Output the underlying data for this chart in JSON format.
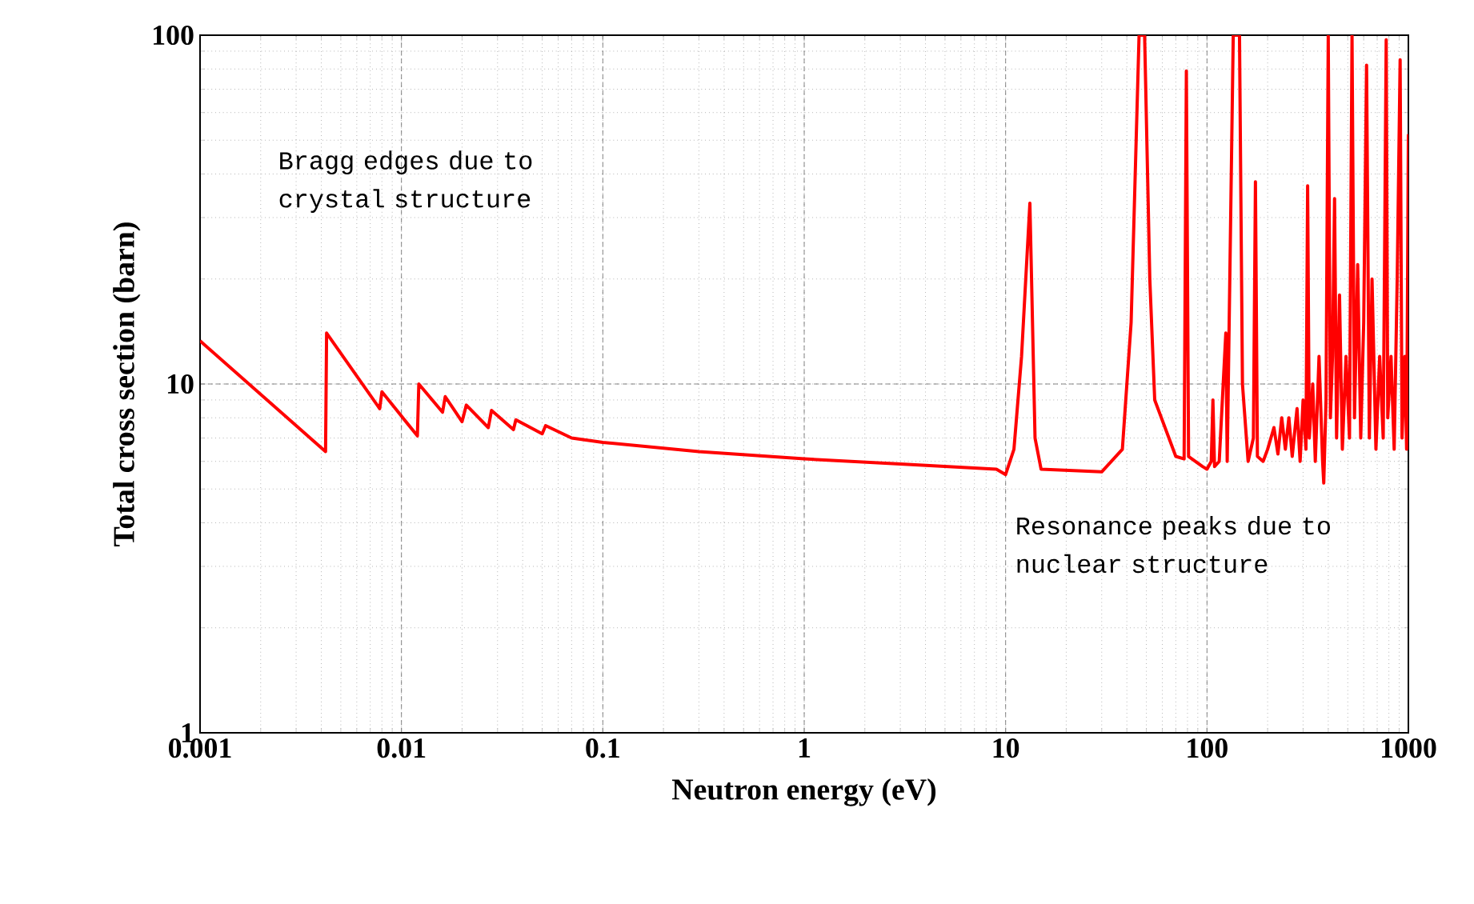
{
  "chart_data": {
    "type": "line",
    "xlabel": "Neutron energy (eV)",
    "ylabel": "Total cross section (barn)",
    "log": "xy",
    "grid": true,
    "marker": "none",
    "line_style": "solid",
    "xlim": [
      0.001,
      1000
    ],
    "ylim": [
      1,
      100
    ],
    "xticks": [
      0.001,
      0.01,
      0.1,
      1,
      10,
      100,
      1000
    ],
    "yticks": [
      1,
      10,
      100
    ],
    "annotations": [
      "Bragg edges due to crystal structure",
      "Resonance peaks due to nuclear structure"
    ],
    "series": [
      {
        "color": "#ff0000",
        "x": [
          0.001,
          0.0042,
          0.00425,
          0.0078,
          0.008,
          0.012,
          0.0122,
          0.016,
          0.0165,
          0.02,
          0.021,
          0.027,
          0.028,
          0.036,
          0.037,
          0.05,
          0.052,
          0.07,
          0.1,
          0.3,
          1,
          3,
          9,
          10,
          11,
          12,
          13.2,
          14,
          15,
          30,
          38,
          42,
          46,
          49,
          52,
          55,
          70,
          77,
          79,
          81,
          95,
          100,
          105,
          107,
          109,
          115,
          124,
          126,
          135,
          145,
          150,
          160,
          170,
          174,
          178,
          190,
          200,
          215,
          225,
          235,
          245,
          255,
          265,
          280,
          290,
          300,
          310,
          316,
          322,
          335,
          345,
          360,
          375,
          380,
          390,
          400,
          410,
          420,
          430,
          440,
          455,
          470,
          490,
          510,
          525,
          540,
          560,
          580,
          600,
          620,
          640,
          660,
          690,
          720,
          750,
          776,
          790,
          820,
          850,
          880,
          910,
          930,
          960,
          980,
          1000
        ],
        "values": [
          13.3,
          6.4,
          14,
          8.5,
          9.5,
          7.1,
          10,
          8.3,
          9.2,
          7.8,
          8.7,
          7.5,
          8.4,
          7.4,
          7.9,
          7.2,
          7.6,
          7.0,
          6.8,
          6.4,
          6.1,
          5.9,
          5.7,
          5.5,
          6.5,
          12,
          33,
          7,
          5.7,
          5.6,
          6.5,
          15,
          100,
          100,
          20,
          9,
          6.2,
          6.1,
          79,
          6.2,
          5.8,
          5.7,
          6,
          9,
          5.8,
          6,
          14,
          6,
          100,
          100,
          10,
          6,
          7,
          38,
          6.2,
          6,
          6.5,
          7.5,
          6.3,
          8,
          6.5,
          8,
          6.2,
          8.5,
          6,
          9,
          6.5,
          37,
          7,
          10,
          6,
          12,
          6,
          5.2,
          9,
          100,
          8,
          12,
          34,
          7,
          18,
          6.5,
          12,
          7,
          100,
          8,
          22,
          7,
          15,
          82,
          7,
          20,
          6.5,
          12,
          7,
          97,
          8,
          12,
          6.5,
          20,
          85,
          7,
          12,
          6.5,
          52
        ]
      }
    ]
  }
}
